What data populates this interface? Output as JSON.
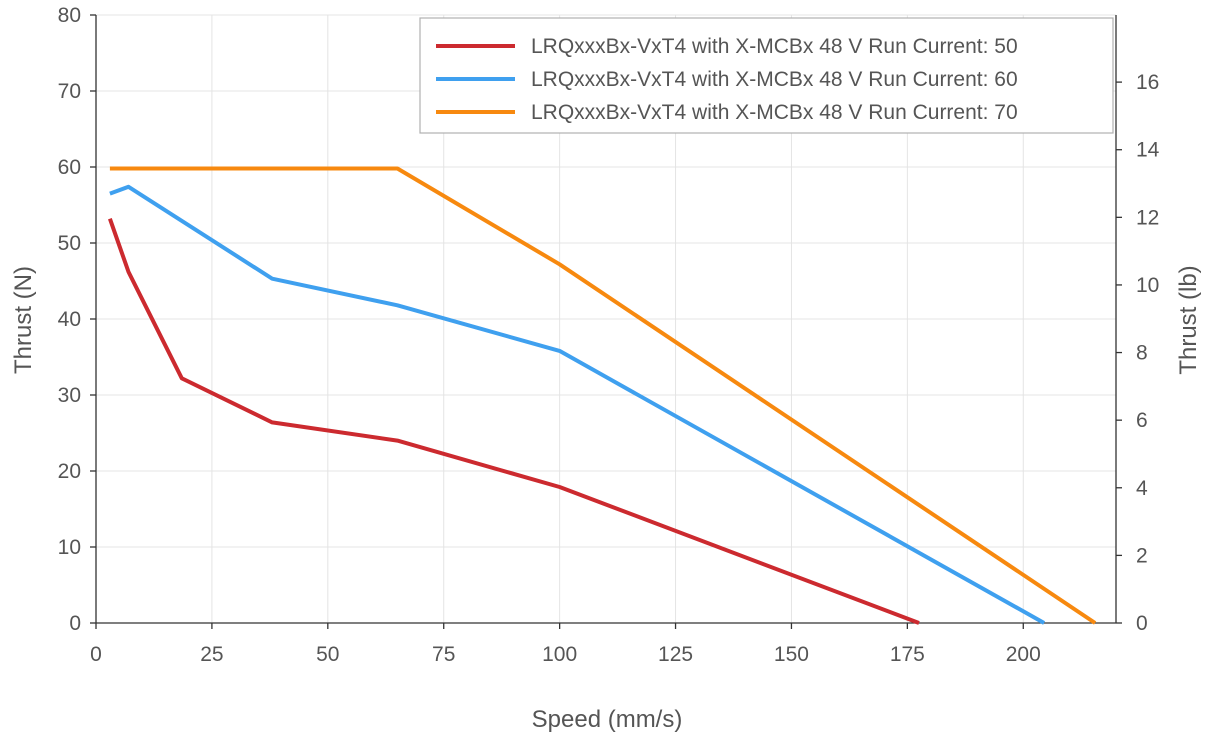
{
  "chart_data": {
    "type": "line",
    "title": "",
    "xlabel": "Speed (mm/s)",
    "ylabel": "Thrust (N)",
    "y2label": "Thrust (lb)",
    "xlim": [
      0,
      220
    ],
    "ylim": [
      0,
      80
    ],
    "y2lim": [
      0,
      17.985
    ],
    "xticks": [
      "0",
      "25",
      "50",
      "75",
      "100",
      "125",
      "150",
      "175",
      "200"
    ],
    "yticks": [
      "0",
      "10",
      "20",
      "30",
      "40",
      "50",
      "60",
      "70",
      "80"
    ],
    "y2ticks": [
      "0",
      "2",
      "4",
      "6",
      "8",
      "10",
      "12",
      "14",
      "16"
    ],
    "grid": true,
    "legend_position": "top-right",
    "series": [
      {
        "name": "LRQxxxBx-VxT4 with X-MCBx 48 V Run Current: 50",
        "color": "#cc2a2f",
        "x": [
          3,
          7,
          18.5,
          38,
          65,
          100,
          177.5
        ],
        "y": [
          53.2,
          46.2,
          32.2,
          26.4,
          24.0,
          17.9,
          0
        ]
      },
      {
        "name": "LRQxxxBx-VxT4 with X-MCBx 48 V Run Current: 60",
        "color": "#3fa0ef",
        "x": [
          3,
          7,
          38,
          65,
          100,
          204.5
        ],
        "y": [
          56.5,
          57.4,
          45.3,
          41.8,
          35.8,
          0
        ]
      },
      {
        "name": "LRQxxxBx-VxT4 with X-MCBx 48 V Run Current: 70",
        "color": "#f7890f",
        "x": [
          3,
          65,
          100,
          215.5
        ],
        "y": [
          59.8,
          59.8,
          47.2,
          0
        ]
      }
    ]
  }
}
